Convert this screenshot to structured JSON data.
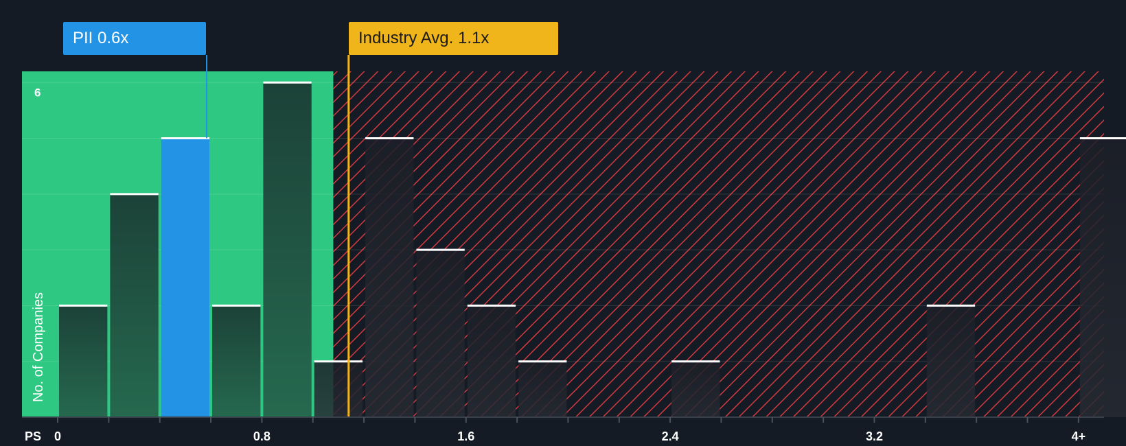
{
  "chart_data": {
    "type": "bar",
    "x_axis_label": "PS",
    "y_axis_label": "No. of Companies",
    "x_ticks": [
      "0",
      "0.8",
      "1.6",
      "2.4",
      "3.2",
      "4+"
    ],
    "x_tick_values": [
      0,
      0.8,
      1.6,
      2.4,
      3.2,
      4.0
    ],
    "y_ticks": [
      "6"
    ],
    "y_tick_values": [
      6
    ],
    "ylim": [
      0,
      6.2
    ],
    "xlim": [
      -0.14,
      4.1
    ],
    "grid": true,
    "bin_width": 0.2,
    "bins": [
      {
        "start": 0.0,
        "value": 2
      },
      {
        "start": 0.2,
        "value": 4
      },
      {
        "start": 0.4,
        "value": 5,
        "highlight": true
      },
      {
        "start": 0.6,
        "value": 2
      },
      {
        "start": 0.8,
        "value": 6
      },
      {
        "start": 1.0,
        "value": 1
      },
      {
        "start": 1.2,
        "value": 5
      },
      {
        "start": 1.4,
        "value": 3
      },
      {
        "start": 1.6,
        "value": 2
      },
      {
        "start": 1.8,
        "value": 1
      },
      {
        "start": 2.4,
        "value": 1
      },
      {
        "start": 3.4,
        "value": 2
      },
      {
        "start": 4.0,
        "value": 5
      }
    ],
    "fair_zone_end": 1.08,
    "company": {
      "label": "PII 0.6x",
      "value": 0.6
    },
    "industry": {
      "label": "Industry Avg. 1.1x",
      "value": 1.14
    }
  },
  "colors": {
    "background": "#151b24",
    "fair_zone": "#2ec882",
    "overvalued_hatch": "#d23a3f",
    "bar_dark": "#1e4b40",
    "bar_highlight": "#2394e5",
    "industry_line": "#f0b51a",
    "bar_top": "#ffffff"
  }
}
